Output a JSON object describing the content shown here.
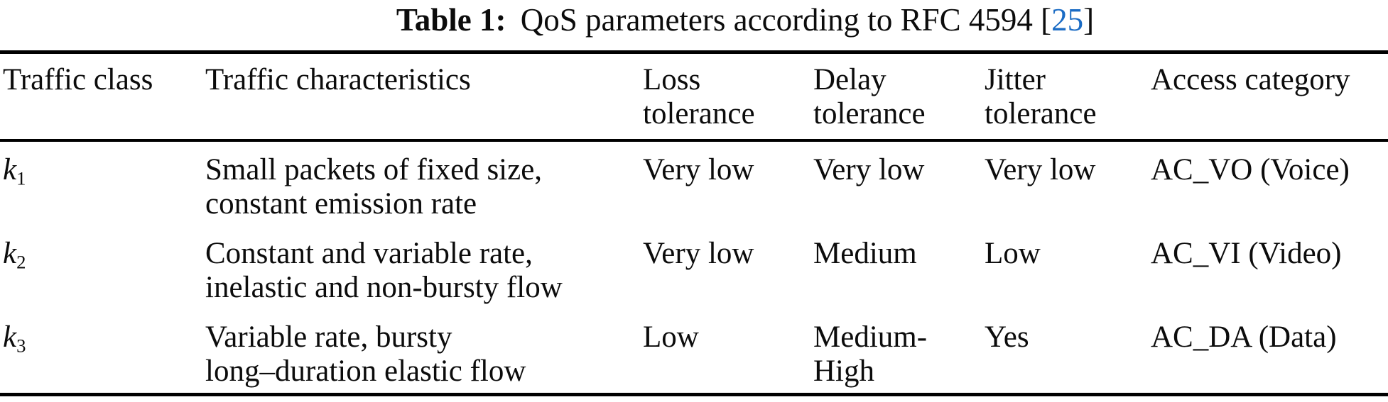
{
  "caption": {
    "label": "Table 1:",
    "text": "QoS parameters according to RFC 4594",
    "cite_open": "[",
    "cite_number": "25",
    "cite_close": "]"
  },
  "colors": {
    "citation_blue": "#1a6bc4",
    "text": "#0c0c0c",
    "rule": "#000000"
  },
  "table": {
    "columns": [
      {
        "key": "traffic_class",
        "label": "Traffic class"
      },
      {
        "key": "characteristics",
        "label": "Traffic characteristics"
      },
      {
        "key": "loss",
        "label": "Loss\ntolerance"
      },
      {
        "key": "delay",
        "label": "Delay\ntolerance"
      },
      {
        "key": "jitter",
        "label": "Jitter\ntolerance"
      },
      {
        "key": "access",
        "label": "Access category"
      }
    ],
    "rows": [
      {
        "class_symbol": "k",
        "class_sub": "1",
        "characteristics": "Small packets of fixed size,\nconstant emission rate",
        "loss": "Very low",
        "delay": "Very low",
        "jitter": "Very low",
        "access": "AC_VO (Voice)"
      },
      {
        "class_symbol": "k",
        "class_sub": "2",
        "characteristics": "Constant and variable rate,\ninelastic and non-bursty flow",
        "loss": "Very low",
        "delay": "Medium",
        "jitter": "Low",
        "access": "AC_VI (Video)"
      },
      {
        "class_symbol": "k",
        "class_sub": "3",
        "characteristics": "Variable rate, bursty\nlong–duration elastic flow",
        "loss": "Low",
        "delay": "Medium-\nHigh",
        "jitter": "Yes",
        "access": "AC_DA (Data)"
      }
    ]
  }
}
